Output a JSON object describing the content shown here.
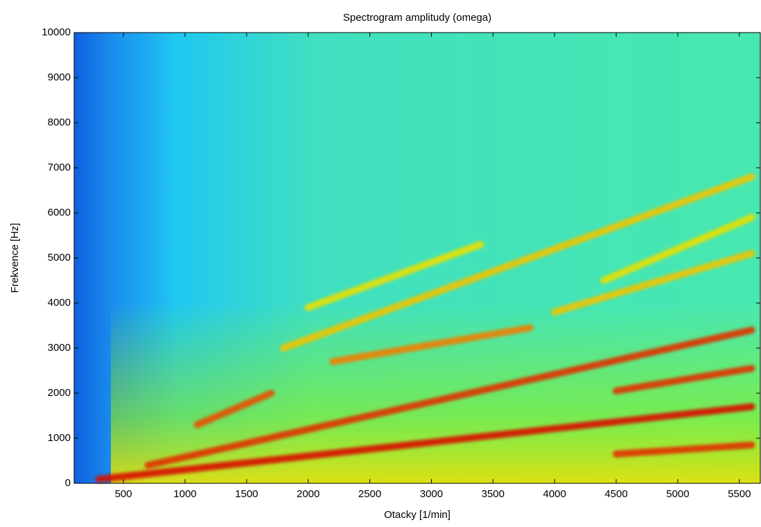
{
  "chart_data": {
    "type": "spectrogram",
    "title": "Spectrogram amplitudy (omega)",
    "xlabel": "Otacky [1/min]",
    "ylabel": "Frekvence [Hz]",
    "xlim": [
      100,
      5670
    ],
    "ylim": [
      0,
      10000
    ],
    "xticks": [
      500,
      1000,
      1500,
      2000,
      2500,
      3000,
      3500,
      4000,
      4500,
      5000,
      5500
    ],
    "yticks": [
      0,
      1000,
      2000,
      3000,
      4000,
      5000,
      6000,
      7000,
      8000,
      9000,
      10000
    ],
    "series": [
      {
        "color": "#f0c400",
        "x": [
          1800,
          5600
        ],
        "values": [
          3000,
          6800
        ]
      },
      {
        "color": "#e8e000",
        "x": [
          2000,
          3400
        ],
        "values": [
          3900,
          5300
        ]
      },
      {
        "color": "#f0c400",
        "x": [
          4000,
          5600
        ],
        "values": [
          3800,
          5100
        ]
      },
      {
        "color": "#e8e000",
        "x": [
          4400,
          5600
        ],
        "values": [
          4500,
          5900
        ]
      },
      {
        "color": "#f08000",
        "x": [
          2200,
          3800
        ],
        "values": [
          2700,
          3450
        ]
      },
      {
        "color": "#e85000",
        "x": [
          1100,
          1700
        ],
        "values": [
          1300,
          2000
        ]
      },
      {
        "color": "#e03000",
        "x": [
          700,
          5600
        ],
        "values": [
          400,
          3400
        ]
      },
      {
        "color": "#e03000",
        "x": [
          4500,
          5600
        ],
        "values": [
          2050,
          2550
        ]
      },
      {
        "color": "#d81000",
        "x": [
          300,
          5600
        ],
        "values": [
          90,
          1700
        ]
      },
      {
        "color": "#e03000",
        "x": [
          4500,
          5600
        ],
        "values": [
          650,
          850
        ]
      }
    ]
  }
}
